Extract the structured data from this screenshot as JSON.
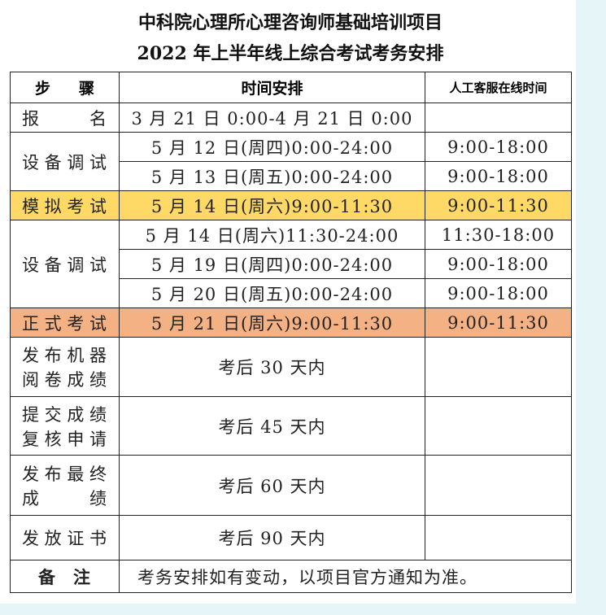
{
  "header": {
    "title": [
      "中科院心理所心理咨询师基础培训项目",
      "2022 年上半年线上综合考试考务安排"
    ]
  },
  "table": {
    "header": [
      "步骤",
      "时间安排",
      "人工客服在线时间"
    ],
    "rows": [
      {
        "step": "报名",
        "time": "3 月 21 日 0:00-4 月 21 日 0:00"
      },
      {
        "step": "设备调试",
        "items": [
          {
            "time": "5 月 12 日(周四)0:00-24:00",
            "service": "9:00-18:00"
          },
          {
            "time": "5 月 13 日(周五)0:00-24:00",
            "service": "9:00-18:00"
          }
        ]
      },
      {
        "step": "模拟考试",
        "time": "5 月 14 日(周六)9:00-11:30",
        "service": "9:00-11:30"
      },
      {
        "step": "设备调试",
        "items": [
          {
            "time": "5 月 14 日(周六)11:30-24:00",
            "service": "11:30-18:00"
          },
          {
            "time": "5 月 19 日(周四)0:00-24:00",
            "service": "9:00-18:00"
          },
          {
            "time": "5 月 20 日(周五)0:00-24:00",
            "service": "9:00-18:00"
          }
        ]
      },
      {
        "step": "正式考试",
        "time": "5 月 21 日(周六)9:00-11:30",
        "service": "9:00-11:30"
      },
      {
        "step": [
          "发布机器",
          "阅卷成绩"
        ],
        "time": "考后 30 天内"
      },
      {
        "step": [
          "提交成绩",
          "复核申请"
        ],
        "time": "考后 45 天内"
      },
      {
        "step": [
          "发布最终",
          "成绩"
        ],
        "time": "考后 60 天内"
      },
      {
        "step": "发放证书",
        "time": "考后 90 天内"
      }
    ],
    "note": {
      "label": "备注",
      "text": "考务安排如有变动，以项目官方通知为准。"
    }
  }
}
